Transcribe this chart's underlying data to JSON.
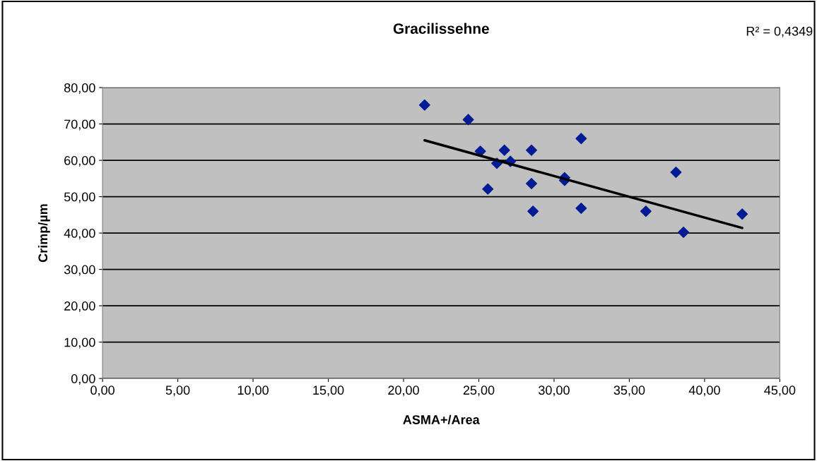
{
  "chart_data": {
    "type": "scatter",
    "title": "Gracilissehne",
    "xlabel": "ASMA+/Area",
    "ylabel": "Crimp/µm",
    "annotations": [
      "R² = 0,4349"
    ],
    "series": [
      {
        "color": "#001c94",
        "marker": "diamond",
        "x": [
          21.4,
          24.3,
          25.1,
          26.7,
          28.5,
          31.8,
          26.2,
          27.1,
          30.7,
          30.7,
          25.6,
          28.5,
          28.6,
          31.8,
          36.1,
          42.5,
          38.6,
          38.1
        ],
        "values": [
          75.2,
          71.2,
          62.5,
          62.8,
          62.8,
          66.0,
          59.2,
          59.7,
          55.2,
          54.5,
          52.1,
          53.6,
          46.0,
          46.8,
          46.0,
          45.2,
          40.2,
          56.7
        ]
      },
      {
        "type": "line",
        "color": "#000000",
        "x": [
          21.4,
          42.5
        ],
        "values": [
          65.5,
          41.4
        ]
      }
    ],
    "grid": "y",
    "legend": false,
    "xlim": [
      0,
      45
    ],
    "ylim": [
      0,
      80
    ],
    "xticks": [
      {
        "value": 0,
        "label": "0,00"
      },
      {
        "value": 5,
        "label": "5,00"
      },
      {
        "value": 10,
        "label": "10,00"
      },
      {
        "value": 15,
        "label": "15,00"
      },
      {
        "value": 20,
        "label": "20,00"
      },
      {
        "value": 25,
        "label": "25,00"
      },
      {
        "value": 30,
        "label": "30,00"
      },
      {
        "value": 35,
        "label": "35,00"
      },
      {
        "value": 40,
        "label": "40,00"
      },
      {
        "value": 45,
        "label": "45,00"
      }
    ],
    "yticks": [
      {
        "value": 0,
        "label": "0,00"
      },
      {
        "value": 10,
        "label": "10,00"
      },
      {
        "value": 20,
        "label": "20,00"
      },
      {
        "value": 30,
        "label": "30,00"
      },
      {
        "value": 40,
        "label": "40,00"
      },
      {
        "value": 50,
        "label": "50,00"
      },
      {
        "value": 60,
        "label": "60,00"
      },
      {
        "value": 70,
        "label": "70,00"
      },
      {
        "value": 80,
        "label": "80,00"
      }
    ]
  }
}
